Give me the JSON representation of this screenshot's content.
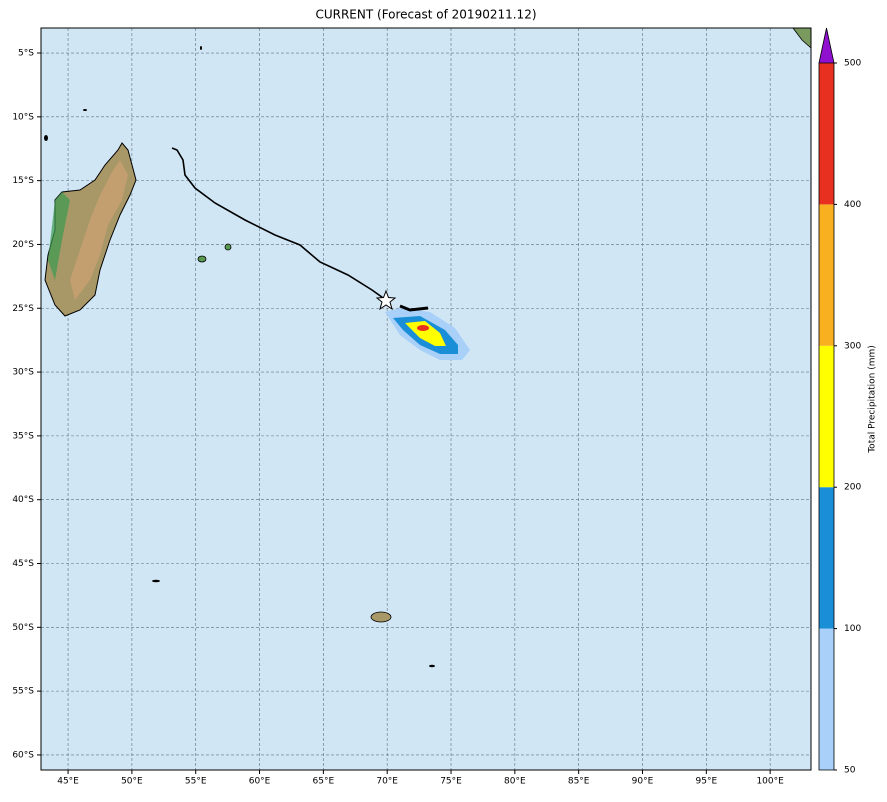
{
  "title": "CURRENT (Forecast of 20190211.12)",
  "map": {
    "xlim": [
      42.88,
      103.2
    ],
    "ylim": [
      -61.18,
      -3.04
    ],
    "xticks": [
      {
        "value": 45,
        "label": "45°E"
      },
      {
        "value": 50,
        "label": "50°E"
      },
      {
        "value": 55,
        "label": "55°E"
      },
      {
        "value": 60,
        "label": "60°E"
      },
      {
        "value": 65,
        "label": "65°E"
      },
      {
        "value": 70,
        "label": "70°E"
      },
      {
        "value": 75,
        "label": "75°E"
      },
      {
        "value": 80,
        "label": "80°E"
      },
      {
        "value": 85,
        "label": "85°E"
      },
      {
        "value": 90,
        "label": "90°E"
      },
      {
        "value": 95,
        "label": "95°E"
      },
      {
        "value": 100,
        "label": "100°E"
      }
    ],
    "yticks": [
      {
        "value": -5,
        "label": "5°S"
      },
      {
        "value": -10,
        "label": "10°S"
      },
      {
        "value": -15,
        "label": "15°S"
      },
      {
        "value": -20,
        "label": "20°S"
      },
      {
        "value": -25,
        "label": "25°S"
      },
      {
        "value": -30,
        "label": "30°S"
      },
      {
        "value": -35,
        "label": "35°S"
      },
      {
        "value": -40,
        "label": "40°S"
      },
      {
        "value": -45,
        "label": "45°S"
      },
      {
        "value": -50,
        "label": "50°S"
      },
      {
        "value": -55,
        "label": "55°S"
      },
      {
        "value": -60,
        "label": "60°S"
      }
    ],
    "grid": true
  },
  "colorbar": {
    "label": "Total Precipitation (mm)",
    "levels": [
      50,
      100,
      200,
      300,
      400,
      500
    ],
    "colors": [
      "#a8d0f8",
      "#1a8fd8",
      "#ffff00",
      "#f8b020",
      "#e83020"
    ],
    "extend_color": "#9010d0"
  }
}
